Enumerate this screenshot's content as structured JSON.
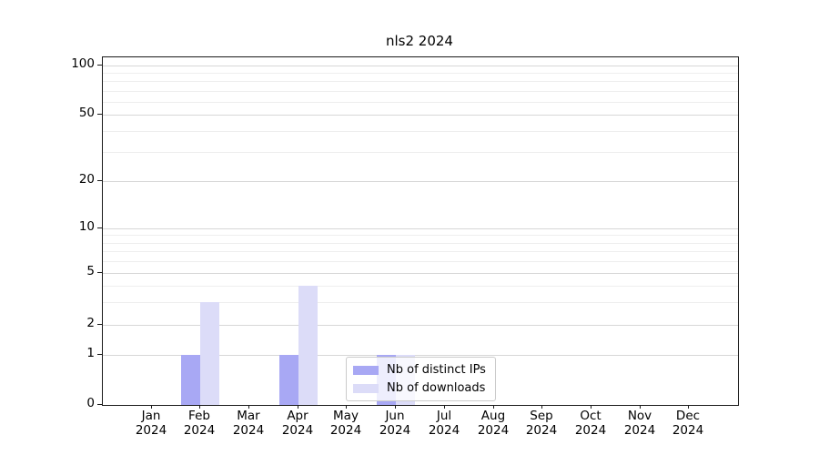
{
  "title": "nls2 2024",
  "chart_data": {
    "type": "bar",
    "title": "nls2 2024",
    "x_categories": [
      "Jan",
      "Feb",
      "Mar",
      "Apr",
      "May",
      "Jun",
      "Jul",
      "Aug",
      "Sep",
      "Oct",
      "Nov",
      "Dec"
    ],
    "x_year": "2024",
    "series": [
      {
        "name": "Nb of distinct IPs",
        "color": "#a8a8f4",
        "values": [
          0,
          1,
          0,
          1,
          0,
          1,
          0,
          0,
          0,
          0,
          0,
          0
        ]
      },
      {
        "name": "Nb of downloads",
        "color": "#dcdcf8",
        "values": [
          0,
          3,
          0,
          4,
          0,
          1,
          0,
          0,
          0,
          0,
          0,
          0
        ]
      }
    ],
    "y_ticks": [
      0,
      1,
      2,
      5,
      10,
      20,
      50,
      100
    ],
    "y_minor_ticks": [
      3,
      4,
      6,
      7,
      8,
      9,
      30,
      40,
      60,
      70,
      80,
      90
    ],
    "ylim": [
      0,
      100
    ],
    "yscale": "symlog",
    "grid": "horizontal",
    "legend": {
      "entries": [
        "Nb of distinct IPs",
        "Nb of downloads"
      ],
      "position": "lower-center"
    }
  },
  "colors": {
    "bar_distinct_ips": "#a8a8f4",
    "bar_downloads": "#dcdcf8"
  }
}
